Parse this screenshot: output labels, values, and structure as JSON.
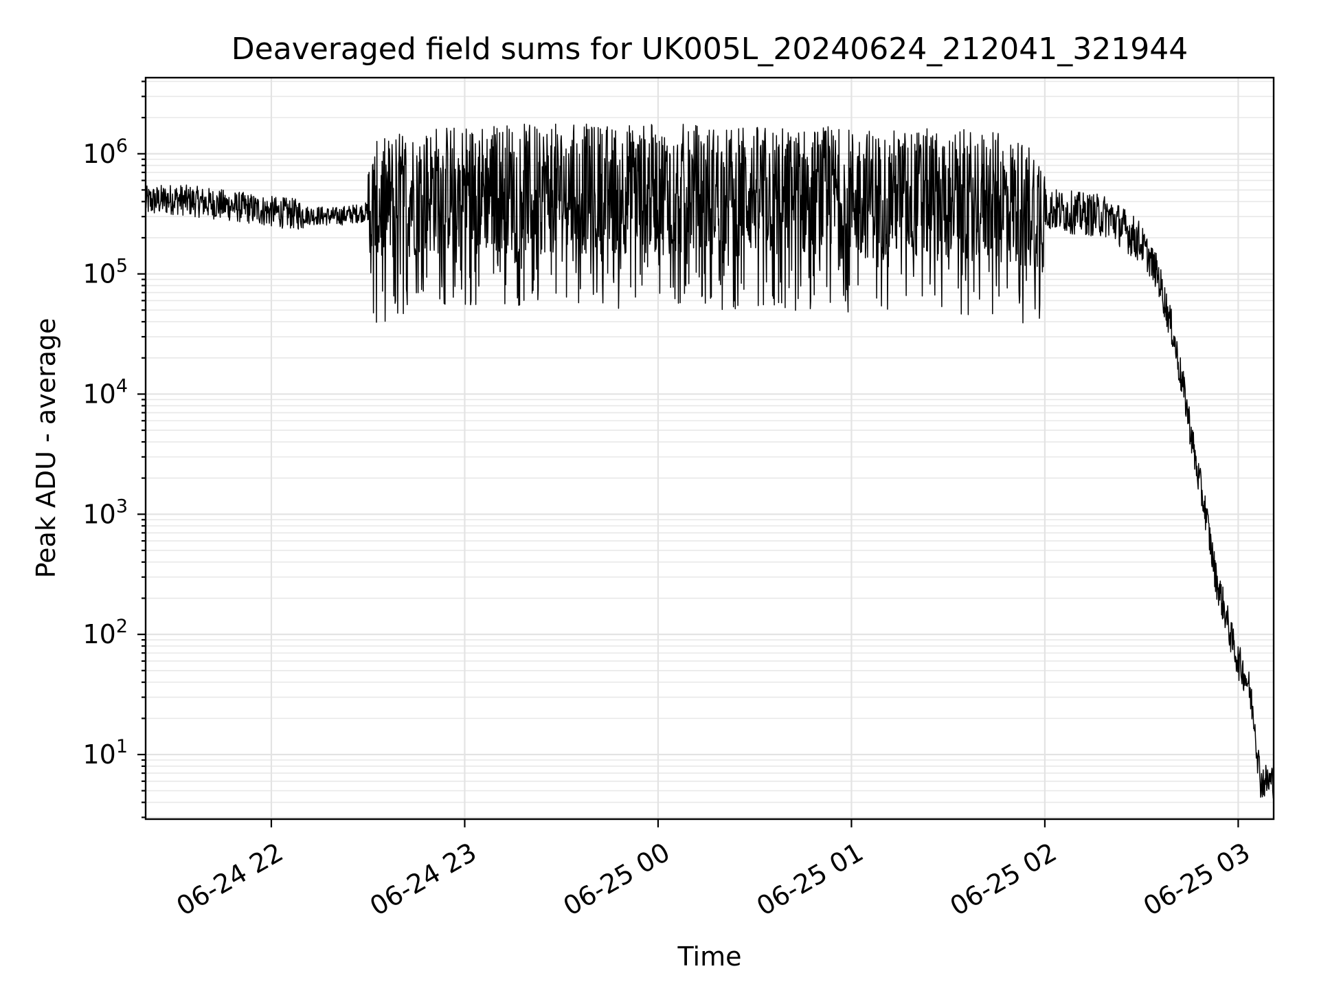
{
  "chart_data": {
    "type": "line",
    "title": "Deaveraged field sums for UK005L_20240624_212041_321944",
    "xlabel": "Time",
    "ylabel": "Peak ADU - average",
    "yscale": "log",
    "xlim": [
      "2024-06-24 21:21",
      "2024-06-25 03:11"
    ],
    "ylim": [
      2.9,
      4300000
    ],
    "grid": "major and minor, both axes",
    "x_ticks": [
      {
        "t": "2024-06-24 22:00",
        "label": "06-24 22"
      },
      {
        "t": "2024-06-24 23:00",
        "label": "06-24 23"
      },
      {
        "t": "2024-06-25 00:00",
        "label": "06-25 00"
      },
      {
        "t": "2024-06-25 01:00",
        "label": "06-25 01"
      },
      {
        "t": "2024-06-25 02:00",
        "label": "06-25 02"
      },
      {
        "t": "2024-06-25 03:00",
        "label": "06-25 03"
      }
    ],
    "y_ticks": [
      {
        "value": 10,
        "base": "10",
        "exp": "1"
      },
      {
        "value": 100,
        "base": "10",
        "exp": "2"
      },
      {
        "value": 1000,
        "base": "10",
        "exp": "3"
      },
      {
        "value": 10000,
        "base": "10",
        "exp": "4"
      },
      {
        "value": 100000,
        "base": "10",
        "exp": "5"
      },
      {
        "value": 1000000,
        "base": "10",
        "exp": "6"
      }
    ],
    "series": [
      {
        "color": "#000000",
        "points": [
          [
            "2024-06-24 21:21",
            400000
          ],
          [
            "2024-06-24 21:30",
            420000
          ],
          [
            "2024-06-24 21:40",
            390000
          ],
          [
            "2024-06-24 21:50",
            360000
          ],
          [
            "2024-06-24 22:00",
            330000
          ],
          [
            "2024-06-24 22:10",
            310000
          ],
          [
            "2024-06-24 22:20",
            300000
          ],
          [
            "2024-06-24 22:30",
            330000
          ],
          [
            "2024-06-24 22:40",
            450000
          ],
          [
            "2024-06-24 22:50",
            500000
          ],
          [
            "2024-06-24 23:00",
            520000
          ],
          [
            "2024-06-24 23:20",
            520000
          ],
          [
            "2024-06-24 23:40",
            510000
          ],
          [
            "2024-06-25 00:00",
            510000
          ],
          [
            "2024-06-25 00:20",
            500000
          ],
          [
            "2024-06-25 00:40",
            480000
          ],
          [
            "2024-06-25 01:00",
            470000
          ],
          [
            "2024-06-25 01:20",
            460000
          ],
          [
            "2024-06-25 01:40",
            450000
          ],
          [
            "2024-06-25 02:00",
            350000
          ],
          [
            "2024-06-25 02:10",
            320000
          ],
          [
            "2024-06-25 02:20",
            300000
          ],
          [
            "2024-06-25 02:30",
            180000
          ],
          [
            "2024-06-25 02:35",
            100000
          ],
          [
            "2024-06-25 02:40",
            30000
          ],
          [
            "2024-06-25 02:42",
            15000
          ],
          [
            "2024-06-25 02:44",
            8000
          ],
          [
            "2024-06-25 02:47",
            2500
          ],
          [
            "2024-06-25 02:50",
            1000
          ],
          [
            "2024-06-25 02:53",
            300
          ],
          [
            "2024-06-25 02:56",
            150
          ],
          [
            "2024-06-25 02:58",
            90
          ],
          [
            "2024-06-25 03:00",
            60
          ],
          [
            "2024-06-25 03:03",
            40
          ],
          [
            "2024-06-25 03:05",
            20
          ],
          [
            "2024-06-25 03:06",
            10
          ],
          [
            "2024-06-25 03:07",
            6
          ],
          [
            "2024-06-25 03:11",
            6
          ]
        ],
        "noise_note_visible": "strong fluctuations between ~5e4 and ~1.6e6 from 22:30 to 02:00"
      }
    ]
  }
}
